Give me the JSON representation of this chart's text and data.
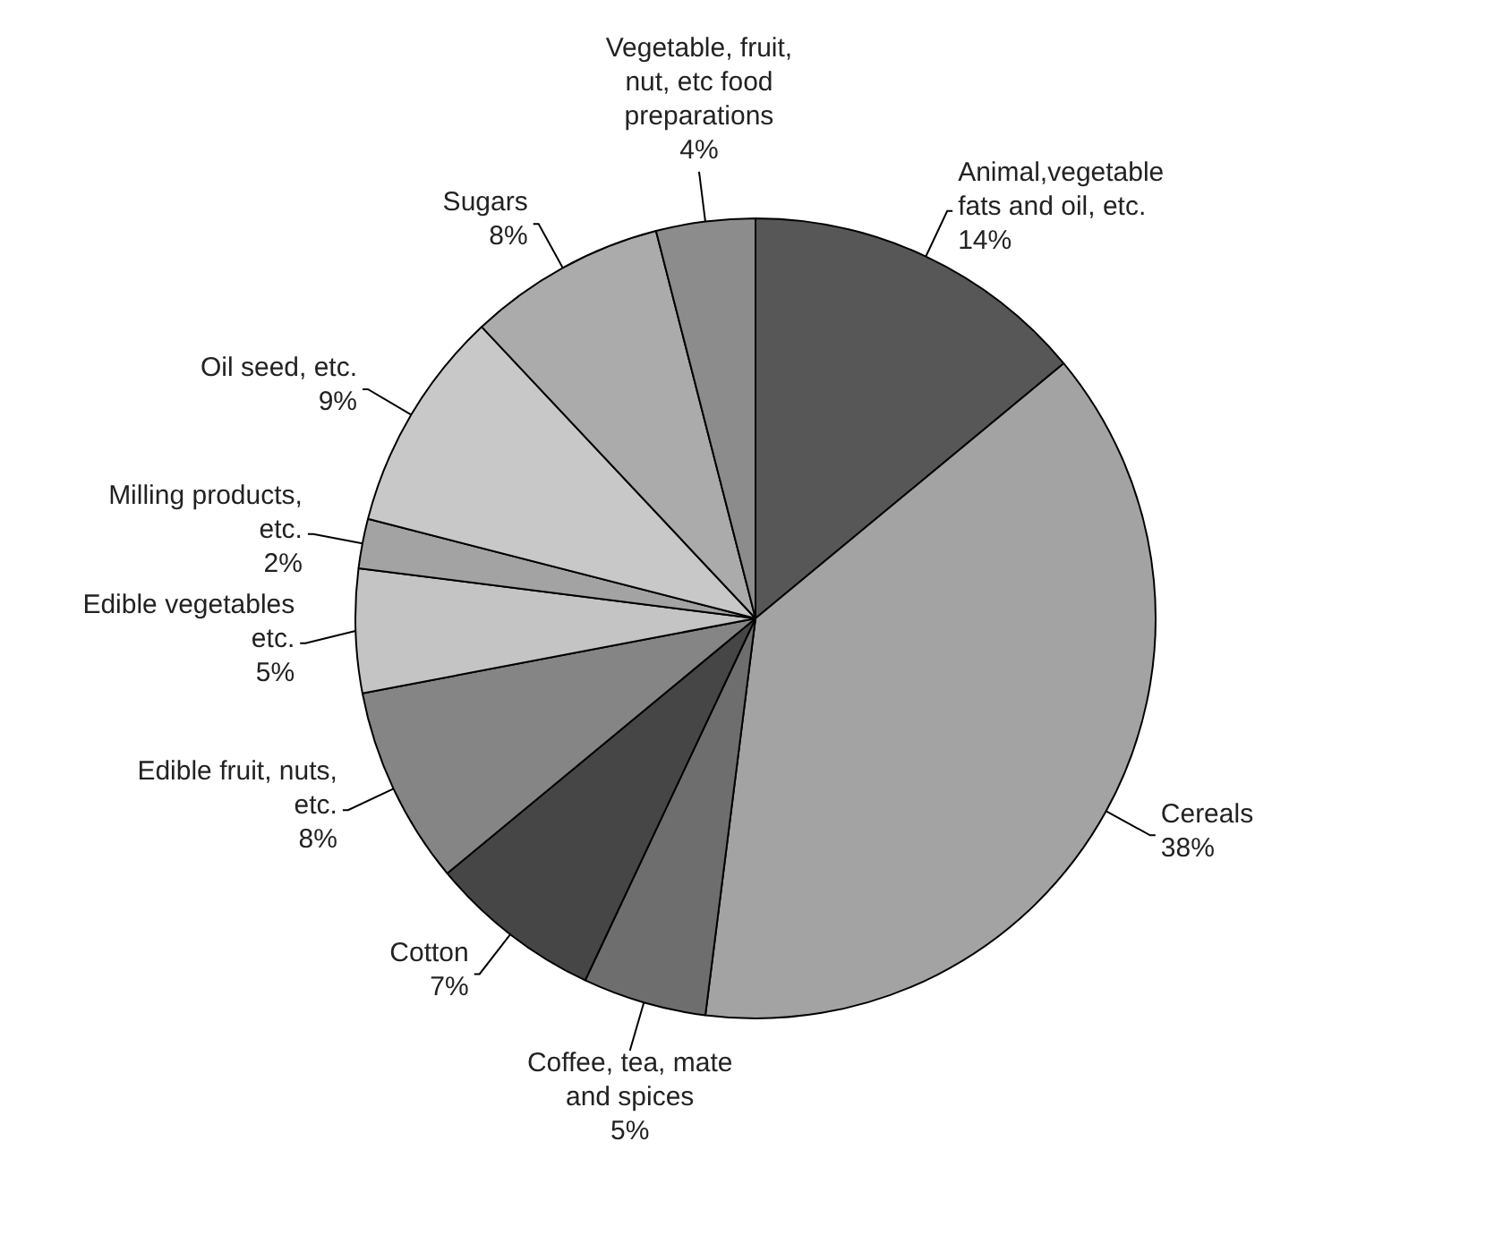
{
  "chart_data": {
    "type": "pie",
    "categories": [
      "Animal,vegetable fats and oil, etc.",
      "Cereals",
      "Coffee, tea, mate and spices",
      "Cotton",
      "Edible fruit, nuts, etc.",
      "Edible vegetables etc.",
      "Milling products, etc.",
      "Oil seed, etc.",
      "Sugars",
      "Vegetable, fruit, nut, etc food preparations"
    ],
    "values": [
      14,
      38,
      5,
      7,
      8,
      5,
      2,
      9,
      8,
      4
    ],
    "value_labels": [
      "14%",
      "38%",
      "5%",
      "7%",
      "8%",
      "5%",
      "2%",
      "9%",
      "8%",
      "4%"
    ],
    "colors": [
      "#575757",
      "#a3a3a3",
      "#6e6e6e",
      "#464646",
      "#858585",
      "#c4c4c4",
      "#a3a3a3",
      "#c8c8c8",
      "#ababab",
      "#8c8c8c"
    ],
    "legend": false
  }
}
